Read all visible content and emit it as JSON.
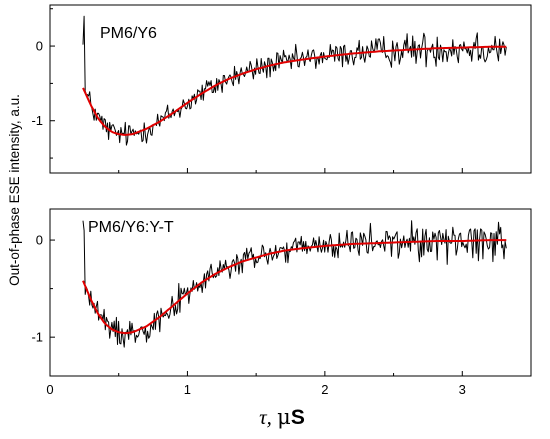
{
  "chart_data": {
    "type": "line",
    "xlabel": {
      "symbol": "τ,",
      "unit_prefix": "μ",
      "unit": "S"
    },
    "ylabel": "Out-of-phase ESE intensity, a.u.",
    "xlim": [
      0,
      3.5
    ],
    "x_ticks": [
      "0",
      "1",
      "2",
      "3"
    ],
    "grid": false,
    "colors": {
      "data": "#000000",
      "fit": "#e00000"
    },
    "panels": [
      {
        "label": "PM6/Y6",
        "ylim": [
          -1.7,
          0.55
        ],
        "y_ticks": [
          "0",
          "-1"
        ],
        "fit": {
          "x": [
            0.24,
            0.3,
            0.35,
            0.4,
            0.45,
            0.5,
            0.55,
            0.6,
            0.7,
            0.8,
            0.9,
            1.0,
            1.1,
            1.2,
            1.3,
            1.4,
            1.5,
            1.6,
            1.7,
            1.8,
            2.0,
            2.2,
            2.4,
            2.6,
            2.8,
            3.0,
            3.2,
            3.32
          ],
          "y": [
            -0.56,
            -0.8,
            -0.97,
            -1.08,
            -1.15,
            -1.18,
            -1.19,
            -1.18,
            -1.11,
            -1.01,
            -0.89,
            -0.76,
            -0.64,
            -0.53,
            -0.44,
            -0.37,
            -0.31,
            -0.26,
            -0.22,
            -0.19,
            -0.14,
            -0.1,
            -0.07,
            -0.05,
            -0.03,
            -0.02,
            -0.01,
            -0.01
          ]
        },
        "noise": {
          "amplitude": 0.12,
          "spike_start": 0.02,
          "spike_peak": 0.4
        }
      },
      {
        "label": "PM6/Y6:Y-T",
        "ylim": [
          -1.4,
          0.32
        ],
        "y_ticks": [
          "0",
          "-1"
        ],
        "fit": {
          "x": [
            0.24,
            0.3,
            0.35,
            0.4,
            0.45,
            0.5,
            0.55,
            0.6,
            0.7,
            0.8,
            0.9,
            1.0,
            1.1,
            1.2,
            1.3,
            1.4,
            1.5,
            1.6,
            1.7,
            1.8,
            2.0,
            2.2,
            2.4,
            2.6,
            2.8,
            3.0,
            3.2,
            3.32
          ],
          "y": [
            -0.42,
            -0.62,
            -0.76,
            -0.86,
            -0.92,
            -0.95,
            -0.96,
            -0.95,
            -0.89,
            -0.79,
            -0.67,
            -0.55,
            -0.44,
            -0.35,
            -0.28,
            -0.22,
            -0.18,
            -0.14,
            -0.11,
            -0.09,
            -0.06,
            -0.04,
            -0.03,
            -0.02,
            -0.01,
            -0.01,
            0.0,
            0.0
          ]
        },
        "noise": {
          "amplitude": 0.1,
          "spike_start": 0.2,
          "spike_peak": 0.1
        }
      }
    ]
  }
}
